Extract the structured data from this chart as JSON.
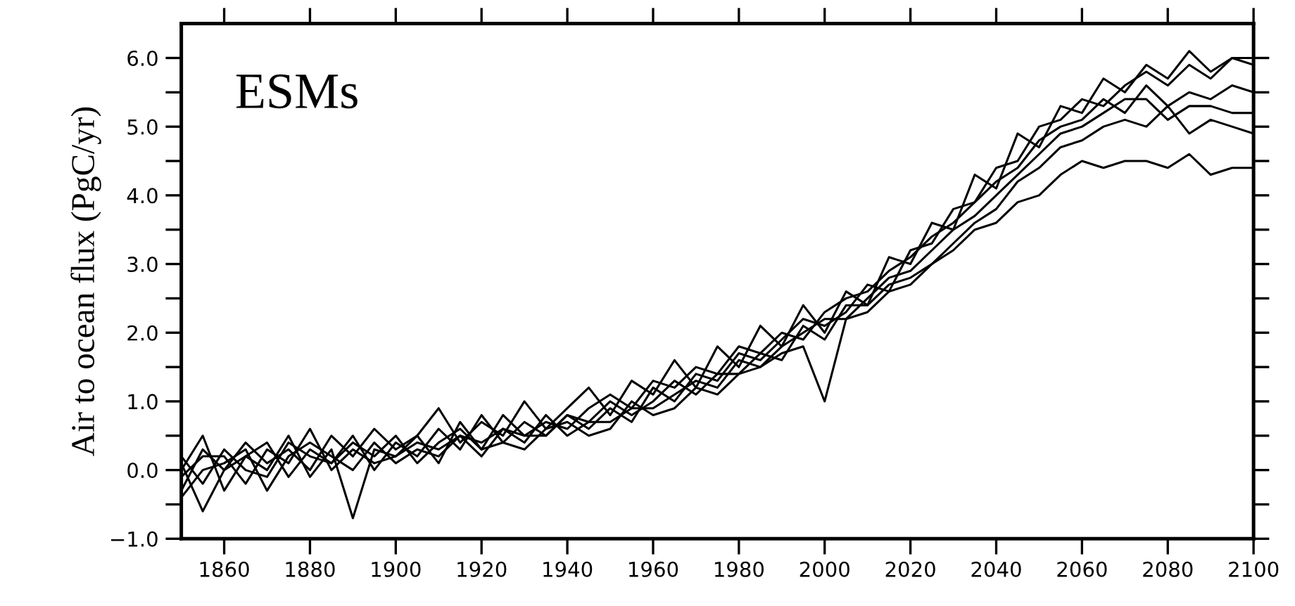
{
  "chart_data": {
    "type": "line",
    "ylabel": "Air to ocean flux (PgC/yr)",
    "annotations": [
      "ESMs"
    ],
    "x": [
      1850,
      1855,
      1860,
      1865,
      1870,
      1875,
      1880,
      1885,
      1890,
      1895,
      1900,
      1905,
      1910,
      1915,
      1920,
      1925,
      1930,
      1935,
      1940,
      1945,
      1950,
      1955,
      1960,
      1965,
      1970,
      1975,
      1980,
      1985,
      1990,
      1995,
      2000,
      2005,
      2010,
      2015,
      2020,
      2025,
      2030,
      2035,
      2040,
      2045,
      2050,
      2055,
      2060,
      2065,
      2070,
      2075,
      2080,
      2085,
      2090,
      2095,
      2100
    ],
    "series": [
      {
        "color": "#000000",
        "values": [
          -0.3,
          0.3,
          0.0,
          0.4,
          0.1,
          0.3,
          0.0,
          0.5,
          0.2,
          0.6,
          0.3,
          0.5,
          0.9,
          0.4,
          0.7,
          0.5,
          1.0,
          0.6,
          0.9,
          1.2,
          0.8,
          1.3,
          1.1,
          1.6,
          1.2,
          1.8,
          1.5,
          2.1,
          1.8,
          2.4,
          2.0,
          2.6,
          2.4,
          3.1,
          3.0,
          3.6,
          3.5,
          4.3,
          4.1,
          4.9,
          4.7,
          5.3,
          5.2,
          5.7,
          5.5,
          5.9,
          5.7,
          6.1,
          5.8,
          6.0,
          6.0
        ]
      },
      {
        "color": "#000000",
        "values": [
          0.2,
          -0.2,
          0.3,
          0.0,
          -0.1,
          0.4,
          0.2,
          0.1,
          0.5,
          0.0,
          0.4,
          0.2,
          0.6,
          0.3,
          0.8,
          0.4,
          0.7,
          0.5,
          0.8,
          0.6,
          0.9,
          0.7,
          1.2,
          1.0,
          1.4,
          1.3,
          1.7,
          1.6,
          1.9,
          2.2,
          2.1,
          2.3,
          2.7,
          2.6,
          3.2,
          3.3,
          3.8,
          3.9,
          4.4,
          4.5,
          5.0,
          5.1,
          5.4,
          5.3,
          5.6,
          5.8,
          5.6,
          5.9,
          5.7,
          6.0,
          5.9
        ]
      },
      {
        "color": "#000000",
        "values": [
          0.0,
          0.5,
          -0.3,
          0.2,
          0.4,
          -0.1,
          0.3,
          0.1,
          0.4,
          0.2,
          0.5,
          0.1,
          0.4,
          0.6,
          0.3,
          0.8,
          0.5,
          0.7,
          0.6,
          0.9,
          1.1,
          0.9,
          1.3,
          1.2,
          1.5,
          1.4,
          1.8,
          1.7,
          2.0,
          1.9,
          2.3,
          2.5,
          2.6,
          2.9,
          3.1,
          3.4,
          3.6,
          3.9,
          4.2,
          4.4,
          4.8,
          5.0,
          5.1,
          5.4,
          5.2,
          5.6,
          5.3,
          5.5,
          5.4,
          5.6,
          5.5
        ]
      },
      {
        "color": "#000000",
        "values": [
          -0.1,
          0.2,
          0.2,
          -0.2,
          0.3,
          0.1,
          0.6,
          0.0,
          0.3,
          0.1,
          0.2,
          0.4,
          0.3,
          0.5,
          0.4,
          0.6,
          0.5,
          0.5,
          0.8,
          0.7,
          0.7,
          0.9,
          0.9,
          1.1,
          1.3,
          1.2,
          1.6,
          1.5,
          1.8,
          2.0,
          2.2,
          2.2,
          2.5,
          2.8,
          2.9,
          3.2,
          3.5,
          3.7,
          4.0,
          4.3,
          4.6,
          4.9,
          5.0,
          5.2,
          5.4,
          5.4,
          5.1,
          5.3,
          5.3,
          5.2,
          5.2
        ]
      },
      {
        "color": "#000000",
        "values": [
          -0.4,
          0.0,
          0.1,
          0.3,
          -0.3,
          0.2,
          0.4,
          0.2,
          0.0,
          0.4,
          0.1,
          0.3,
          0.2,
          0.5,
          0.2,
          0.6,
          0.4,
          0.8,
          0.5,
          0.7,
          1.0,
          0.8,
          1.0,
          1.3,
          1.1,
          1.4,
          1.4,
          1.7,
          1.6,
          2.1,
          1.9,
          2.4,
          2.4,
          2.7,
          2.8,
          3.0,
          3.3,
          3.6,
          3.8,
          4.2,
          4.4,
          4.7,
          4.8,
          5.0,
          5.1,
          5.0,
          5.3,
          4.9,
          5.1,
          5.0,
          4.9
        ]
      },
      {
        "color": "#000000",
        "values": [
          0.1,
          -0.6,
          0.0,
          0.2,
          0.0,
          0.5,
          -0.1,
          0.3,
          -0.7,
          0.3,
          0.2,
          0.5,
          0.1,
          0.7,
          0.3,
          0.4,
          0.3,
          0.6,
          0.7,
          0.5,
          0.6,
          1.0,
          0.8,
          0.9,
          1.2,
          1.1,
          1.4,
          1.5,
          1.7,
          1.8,
          1.0,
          2.2,
          2.3,
          2.6,
          2.7,
          3.0,
          3.2,
          3.5,
          3.6,
          3.9,
          4.0,
          4.3,
          4.5,
          4.4,
          4.5,
          4.5,
          4.4,
          4.6,
          4.3,
          4.4,
          4.4
        ]
      }
    ],
    "xlim": [
      1850,
      2100
    ],
    "xticks": [
      1860,
      1880,
      1900,
      1920,
      1940,
      1960,
      1980,
      2000,
      2020,
      2040,
      2060,
      2080,
      2100
    ],
    "ylim": [
      -1.0,
      6.5
    ],
    "yticks": [
      {
        "value": -1.0,
        "label": "−1.0"
      },
      {
        "value": -0.5,
        "label": null
      },
      {
        "value": 0.0,
        "label": "0.0"
      },
      {
        "value": 0.5,
        "label": null
      },
      {
        "value": 1.0,
        "label": "1.0"
      },
      {
        "value": 1.5,
        "label": null
      },
      {
        "value": 2.0,
        "label": "2.0"
      },
      {
        "value": 2.5,
        "label": null
      },
      {
        "value": 3.0,
        "label": "3.0"
      },
      {
        "value": 3.5,
        "label": null
      },
      {
        "value": 4.0,
        "label": "4.0"
      },
      {
        "value": 4.5,
        "label": null
      },
      {
        "value": 5.0,
        "label": "5.0"
      },
      {
        "value": 5.5,
        "label": null
      },
      {
        "value": 6.0,
        "label": "6.0"
      }
    ],
    "marker": "none",
    "line_style": "solid"
  }
}
